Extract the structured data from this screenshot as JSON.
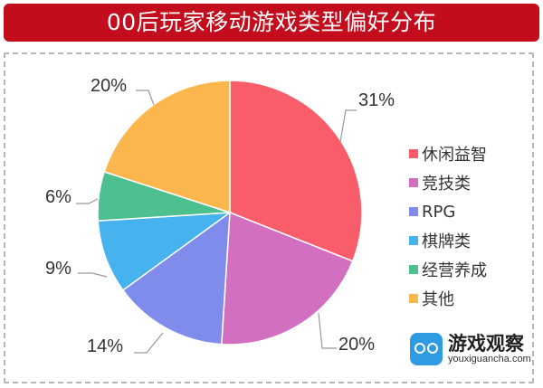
{
  "title": "00后玩家移动游戏类型偏好分布",
  "chart_data": {
    "type": "pie",
    "title": "00后玩家移动游戏类型偏好分布",
    "categories": [
      "休闲益智",
      "竞技类",
      "RPG",
      "棋牌类",
      "经营养成",
      "其他"
    ],
    "values": [
      31,
      20,
      14,
      9,
      6,
      20
    ],
    "unit": "%",
    "colors": [
      "#f95d6a",
      "#d36fc0",
      "#7f8cec",
      "#46b3ef",
      "#4cc08f",
      "#fbb64e"
    ],
    "legend_position": "right",
    "start_angle": "12 o'clock, clockwise"
  },
  "labels": [
    "31%",
    "20%",
    "14%",
    "9%",
    "6%",
    "20%"
  ],
  "legend": [
    {
      "label": "休闲益智",
      "color": "#f95d6a"
    },
    {
      "label": "竞技类",
      "color": "#d36fc0"
    },
    {
      "label": "RPG",
      "color": "#7f8cec"
    },
    {
      "label": "棋牌类",
      "color": "#46b3ef"
    },
    {
      "label": "经营养成",
      "color": "#4cc08f"
    },
    {
      "label": "其他",
      "color": "#fbb64e"
    }
  ],
  "watermark": {
    "name": "游戏观察",
    "url": "youxiguancha.com",
    "icon": "gamepad-icon"
  }
}
